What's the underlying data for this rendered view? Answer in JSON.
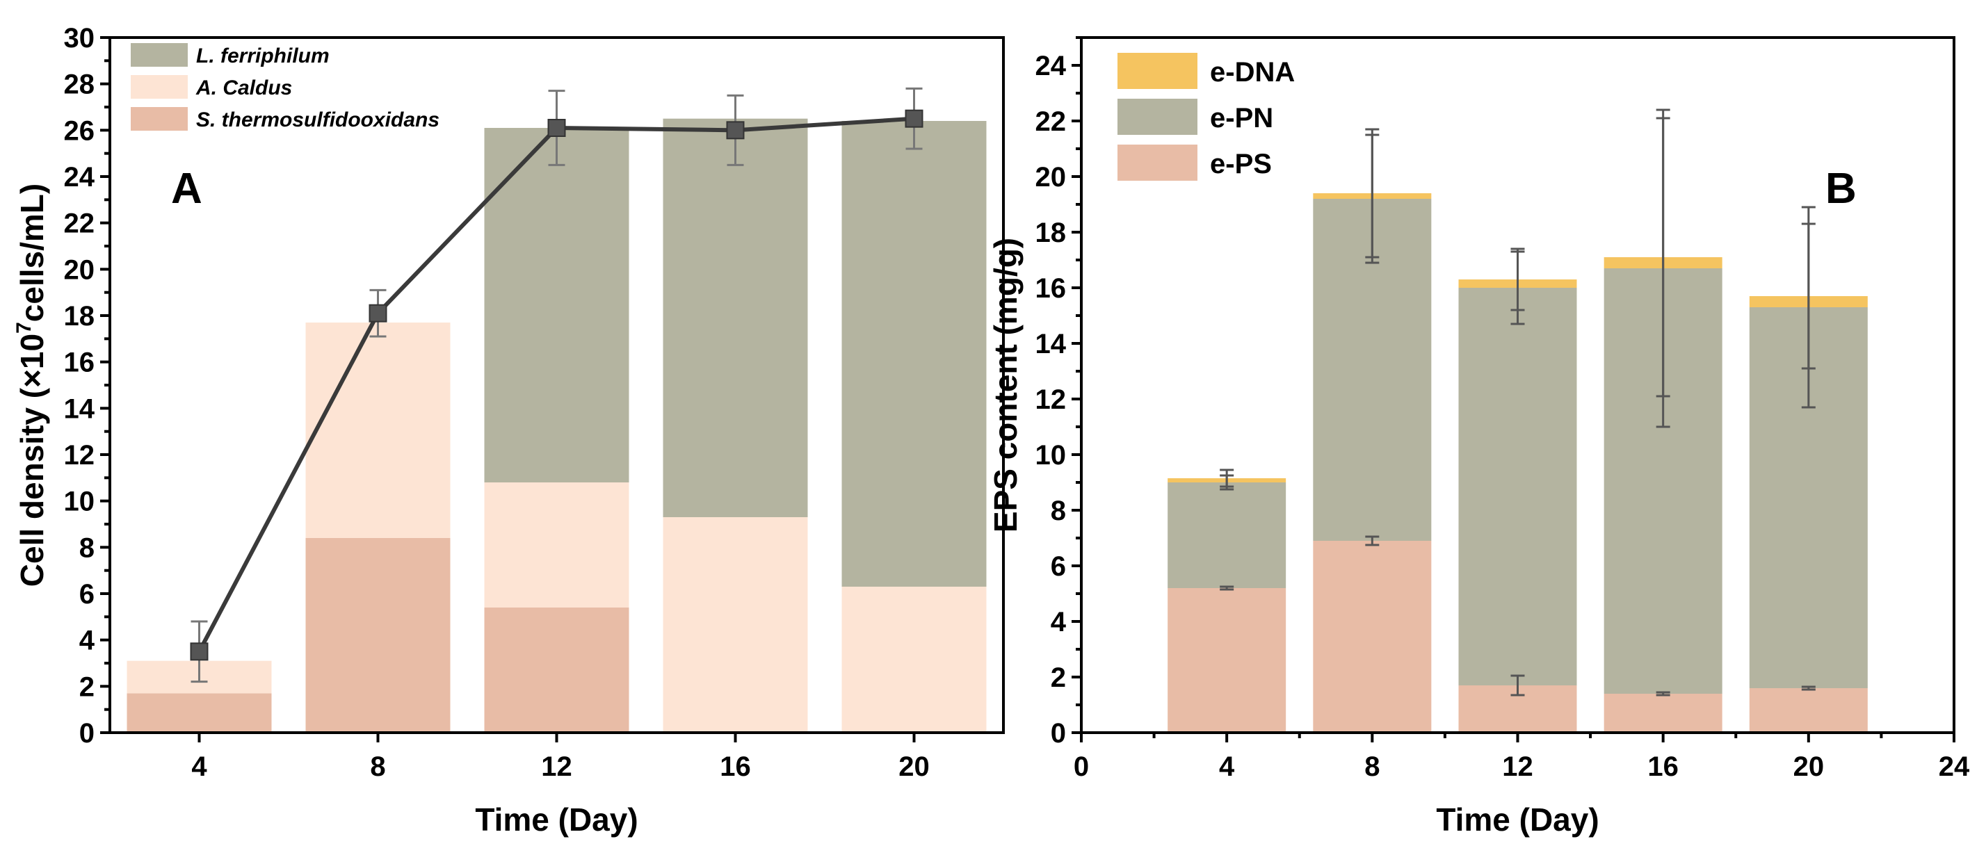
{
  "colors": {
    "s_thermo": "#e8bca6",
    "a_caldus": "#fde4d4",
    "l_ferri": "#b4b4a0",
    "e_dna": "#f5c460",
    "e_pn": "#b4b4a0",
    "e_ps": "#e8bca6",
    "line": "#3a3a3a",
    "marker": "#555555"
  },
  "chart_data": [
    {
      "type": "bar",
      "stacked": true,
      "panel_label": "A",
      "xlabel": "Time (Day)",
      "ylabel_parts": {
        "main": "Cell density (×10",
        "sup": "7",
        "rest": "cells/mL)"
      },
      "categories": [
        "4",
        "8",
        "12",
        "16",
        "20"
      ],
      "ylim": [
        0,
        30
      ],
      "yticks": [
        "0",
        "2",
        "4",
        "6",
        "8",
        "10",
        "12",
        "14",
        "16",
        "18",
        "20",
        "22",
        "24",
        "26",
        "28",
        "30"
      ],
      "series": [
        {
          "name": "S. thermosulfidooxidans",
          "values": [
            1.7,
            8.4,
            5.4,
            0,
            0
          ]
        },
        {
          "name": "A. Caldus",
          "values": [
            1.4,
            9.3,
            5.4,
            9.3,
            6.3
          ]
        },
        {
          "name": "L. ferriphilum",
          "values": [
            0,
            0,
            15.3,
            17.2,
            20.1
          ]
        }
      ],
      "line_series": {
        "values": [
          3.5,
          18.1,
          26.1,
          26.0,
          26.5
        ],
        "error": [
          1.3,
          1.0,
          1.6,
          1.5,
          1.3
        ]
      },
      "legend_order": [
        "L. ferriphilum",
        "A. Caldus",
        "S. thermosulfidooxidans"
      ],
      "legend_position": "top-left"
    },
    {
      "type": "bar",
      "stacked": true,
      "panel_label": "B",
      "xlabel": "Time (Day)",
      "ylabel": "EPS content (mg/g)",
      "x": [
        4,
        8,
        12,
        16,
        20
      ],
      "xlim": [
        0,
        24
      ],
      "xticks": [
        "0",
        "4",
        "8",
        "12",
        "16",
        "20",
        "24"
      ],
      "ylim": [
        0,
        25
      ],
      "yticks": [
        "0",
        "2",
        "4",
        "6",
        "8",
        "10",
        "12",
        "14",
        "16",
        "18",
        "20",
        "22",
        "24"
      ],
      "series": [
        {
          "name": "e-PS",
          "values": [
            5.2,
            6.9,
            1.7,
            1.4,
            1.6
          ],
          "error": [
            0.05,
            0.15,
            0.35,
            0.05,
            0.05
          ]
        },
        {
          "name": "e-PN",
          "values": [
            3.8,
            12.3,
            14.3,
            15.3,
            13.7
          ],
          "error": [
            0.25,
            2.3,
            1.3,
            5.7,
            3.6
          ]
        },
        {
          "name": "e-DNA",
          "values": [
            0.15,
            0.2,
            0.3,
            0.4,
            0.4
          ],
          "error": [
            0.3,
            2.3,
            1.1,
            5.0,
            2.6
          ]
        }
      ],
      "legend_order": [
        "e-DNA",
        "e-PN",
        "e-PS"
      ],
      "legend_position": "top-left"
    }
  ]
}
